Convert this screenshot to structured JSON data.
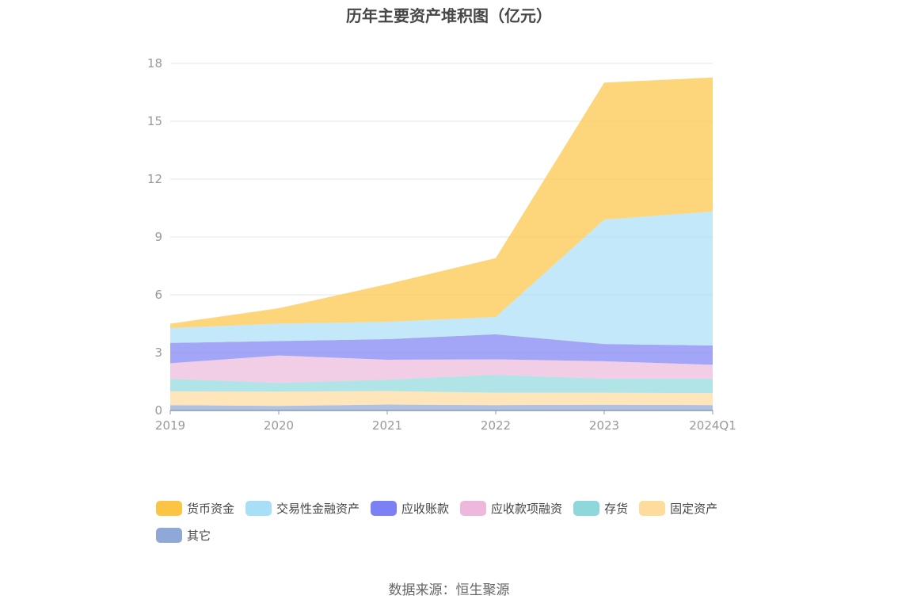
{
  "chart_data": {
    "type": "area",
    "stacked": true,
    "title": "历年主要资产堆积图（亿元）",
    "x": [
      "2019",
      "2020",
      "2021",
      "2022",
      "2023",
      "2024Q1"
    ],
    "ylim": [
      0,
      18
    ],
    "yticks": [
      "0",
      "3",
      "6",
      "9",
      "12",
      "15",
      "18"
    ],
    "grid": true,
    "legend_position": "bottom",
    "series": [
      {
        "name": "其它",
        "color": "#8fa8d8",
        "values": [
          0.28,
          0.24,
          0.31,
          0.28,
          0.3,
          0.28
        ]
      },
      {
        "name": "固定资产",
        "color": "#fddc9c",
        "values": [
          0.72,
          0.74,
          0.7,
          0.64,
          0.62,
          0.62
        ]
      },
      {
        "name": "存货",
        "color": "#8ed8db",
        "values": [
          0.65,
          0.45,
          0.59,
          0.93,
          0.73,
          0.75
        ]
      },
      {
        "name": "应收款项融资",
        "color": "#edb8dc",
        "values": [
          0.8,
          1.42,
          1.03,
          0.8,
          0.9,
          0.72
        ]
      },
      {
        "name": "应收账款",
        "color": "#7c80f4",
        "values": [
          1.05,
          0.75,
          1.07,
          1.3,
          0.9,
          1.0
        ]
      },
      {
        "name": "交易性金融资产",
        "color": "#a9def7",
        "values": [
          0.78,
          0.9,
          0.9,
          0.9,
          6.45,
          6.95
        ]
      },
      {
        "name": "货币资金",
        "color": "#fcc445",
        "values": [
          0.22,
          0.8,
          1.95,
          3.05,
          7.1,
          6.95
        ]
      }
    ]
  },
  "legend_order": [
    "货币资金",
    "交易性金融资产",
    "应收账款",
    "应收款项融资",
    "存货",
    "固定资产",
    "其它"
  ],
  "source": "数据来源：恒生聚源"
}
